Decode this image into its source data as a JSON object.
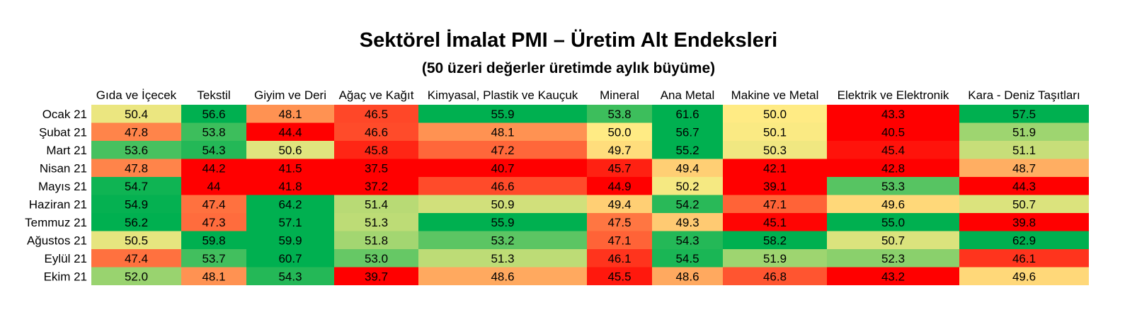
{
  "chart_data": {
    "type": "heatmap",
    "title": "Sektörel İmalat PMI – Üretim Alt Endeksleri",
    "subtitle": "(50 üzeri değerler üretimde aylık büyüme)",
    "columns": [
      "Gıda ve İçecek",
      "Tekstil",
      "Giyim ve Deri",
      "Ağaç ve Kağıt",
      "Kimyasal, Plastik ve Kauçuk",
      "Mineral",
      "Ana Metal",
      "Makine ve Metal",
      "Elektrik ve Elektronik",
      "Kara - Deniz Taşıtları"
    ],
    "rows": [
      "Ocak 21",
      "Şubat 21",
      "Mart 21",
      "Nisan 21",
      "Mayıs 21",
      "Haziran 21",
      "Temmuz 21",
      "Ağustos 21",
      "Eylül 21",
      "Ekim 21"
    ],
    "values": [
      [
        50.4,
        56.6,
        48.1,
        46.5,
        55.9,
        53.8,
        61.6,
        50.0,
        43.3,
        57.5
      ],
      [
        47.8,
        53.8,
        44.4,
        46.6,
        48.1,
        50.0,
        56.7,
        50.1,
        40.5,
        51.9
      ],
      [
        53.6,
        54.3,
        50.6,
        45.8,
        47.2,
        49.7,
        55.2,
        50.3,
        45.4,
        51.1
      ],
      [
        47.8,
        44.2,
        41.5,
        37.5,
        40.7,
        45.7,
        49.4,
        42.1,
        42.8,
        48.7
      ],
      [
        54.7,
        44,
        41.8,
        37.2,
        46.6,
        44.9,
        50.2,
        39.1,
        53.3,
        44.3
      ],
      [
        54.9,
        47.4,
        64.2,
        51.4,
        50.9,
        49.4,
        54.2,
        47.1,
        49.6,
        50.7
      ],
      [
        56.2,
        47.3,
        57.1,
        51.3,
        55.9,
        47.5,
        49.3,
        45.1,
        55.0,
        39.8
      ],
      [
        50.5,
        59.8,
        59.9,
        51.8,
        53.2,
        47.1,
        54.3,
        58.2,
        50.7,
        62.9
      ],
      [
        47.4,
        53.7,
        60.7,
        53.0,
        51.3,
        46.1,
        54.5,
        51.9,
        52.3,
        46.1
      ],
      [
        52.0,
        48.1,
        54.3,
        39.7,
        48.6,
        45.5,
        48.6,
        46.8,
        43.2,
        49.6
      ]
    ],
    "value_labels": [
      [
        "50.4",
        "56.6",
        "48.1",
        "46.5",
        "55.9",
        "53.8",
        "61.6",
        "50.0",
        "43.3",
        "57.5"
      ],
      [
        "47.8",
        "53.8",
        "44.4",
        "46.6",
        "48.1",
        "50.0",
        "56.7",
        "50.1",
        "40.5",
        "51.9"
      ],
      [
        "53.6",
        "54.3",
        "50.6",
        "45.8",
        "47.2",
        "49.7",
        "55.2",
        "50.3",
        "45.4",
        "51.1"
      ],
      [
        "47.8",
        "44.2",
        "41.5",
        "37.5",
        "40.7",
        "45.7",
        "49.4",
        "42.1",
        "42.8",
        "48.7"
      ],
      [
        "54.7",
        "44",
        "41.8",
        "37.2",
        "46.6",
        "44.9",
        "50.2",
        "39.1",
        "53.3",
        "44.3"
      ],
      [
        "54.9",
        "47.4",
        "64.2",
        "51.4",
        "50.9",
        "49.4",
        "54.2",
        "47.1",
        "49.6",
        "50.7"
      ],
      [
        "56.2",
        "47.3",
        "57.1",
        "51.3",
        "55.9",
        "47.5",
        "49.3",
        "45.1",
        "55.0",
        "39.8"
      ],
      [
        "50.5",
        "59.8",
        "59.9",
        "51.8",
        "53.2",
        "47.1",
        "54.3",
        "58.2",
        "50.7",
        "62.9"
      ],
      [
        "47.4",
        "53.7",
        "60.7",
        "53.0",
        "51.3",
        "46.1",
        "54.5",
        "51.9",
        "52.3",
        "46.1"
      ],
      [
        "52.0",
        "48.1",
        "54.3",
        "39.7",
        "48.6",
        "45.5",
        "48.6",
        "46.8",
        "43.2",
        "49.6"
      ]
    ],
    "color_scale": {
      "low": "#ff0000",
      "mid": "#ffeb84",
      "high": "#00b050"
    }
  }
}
